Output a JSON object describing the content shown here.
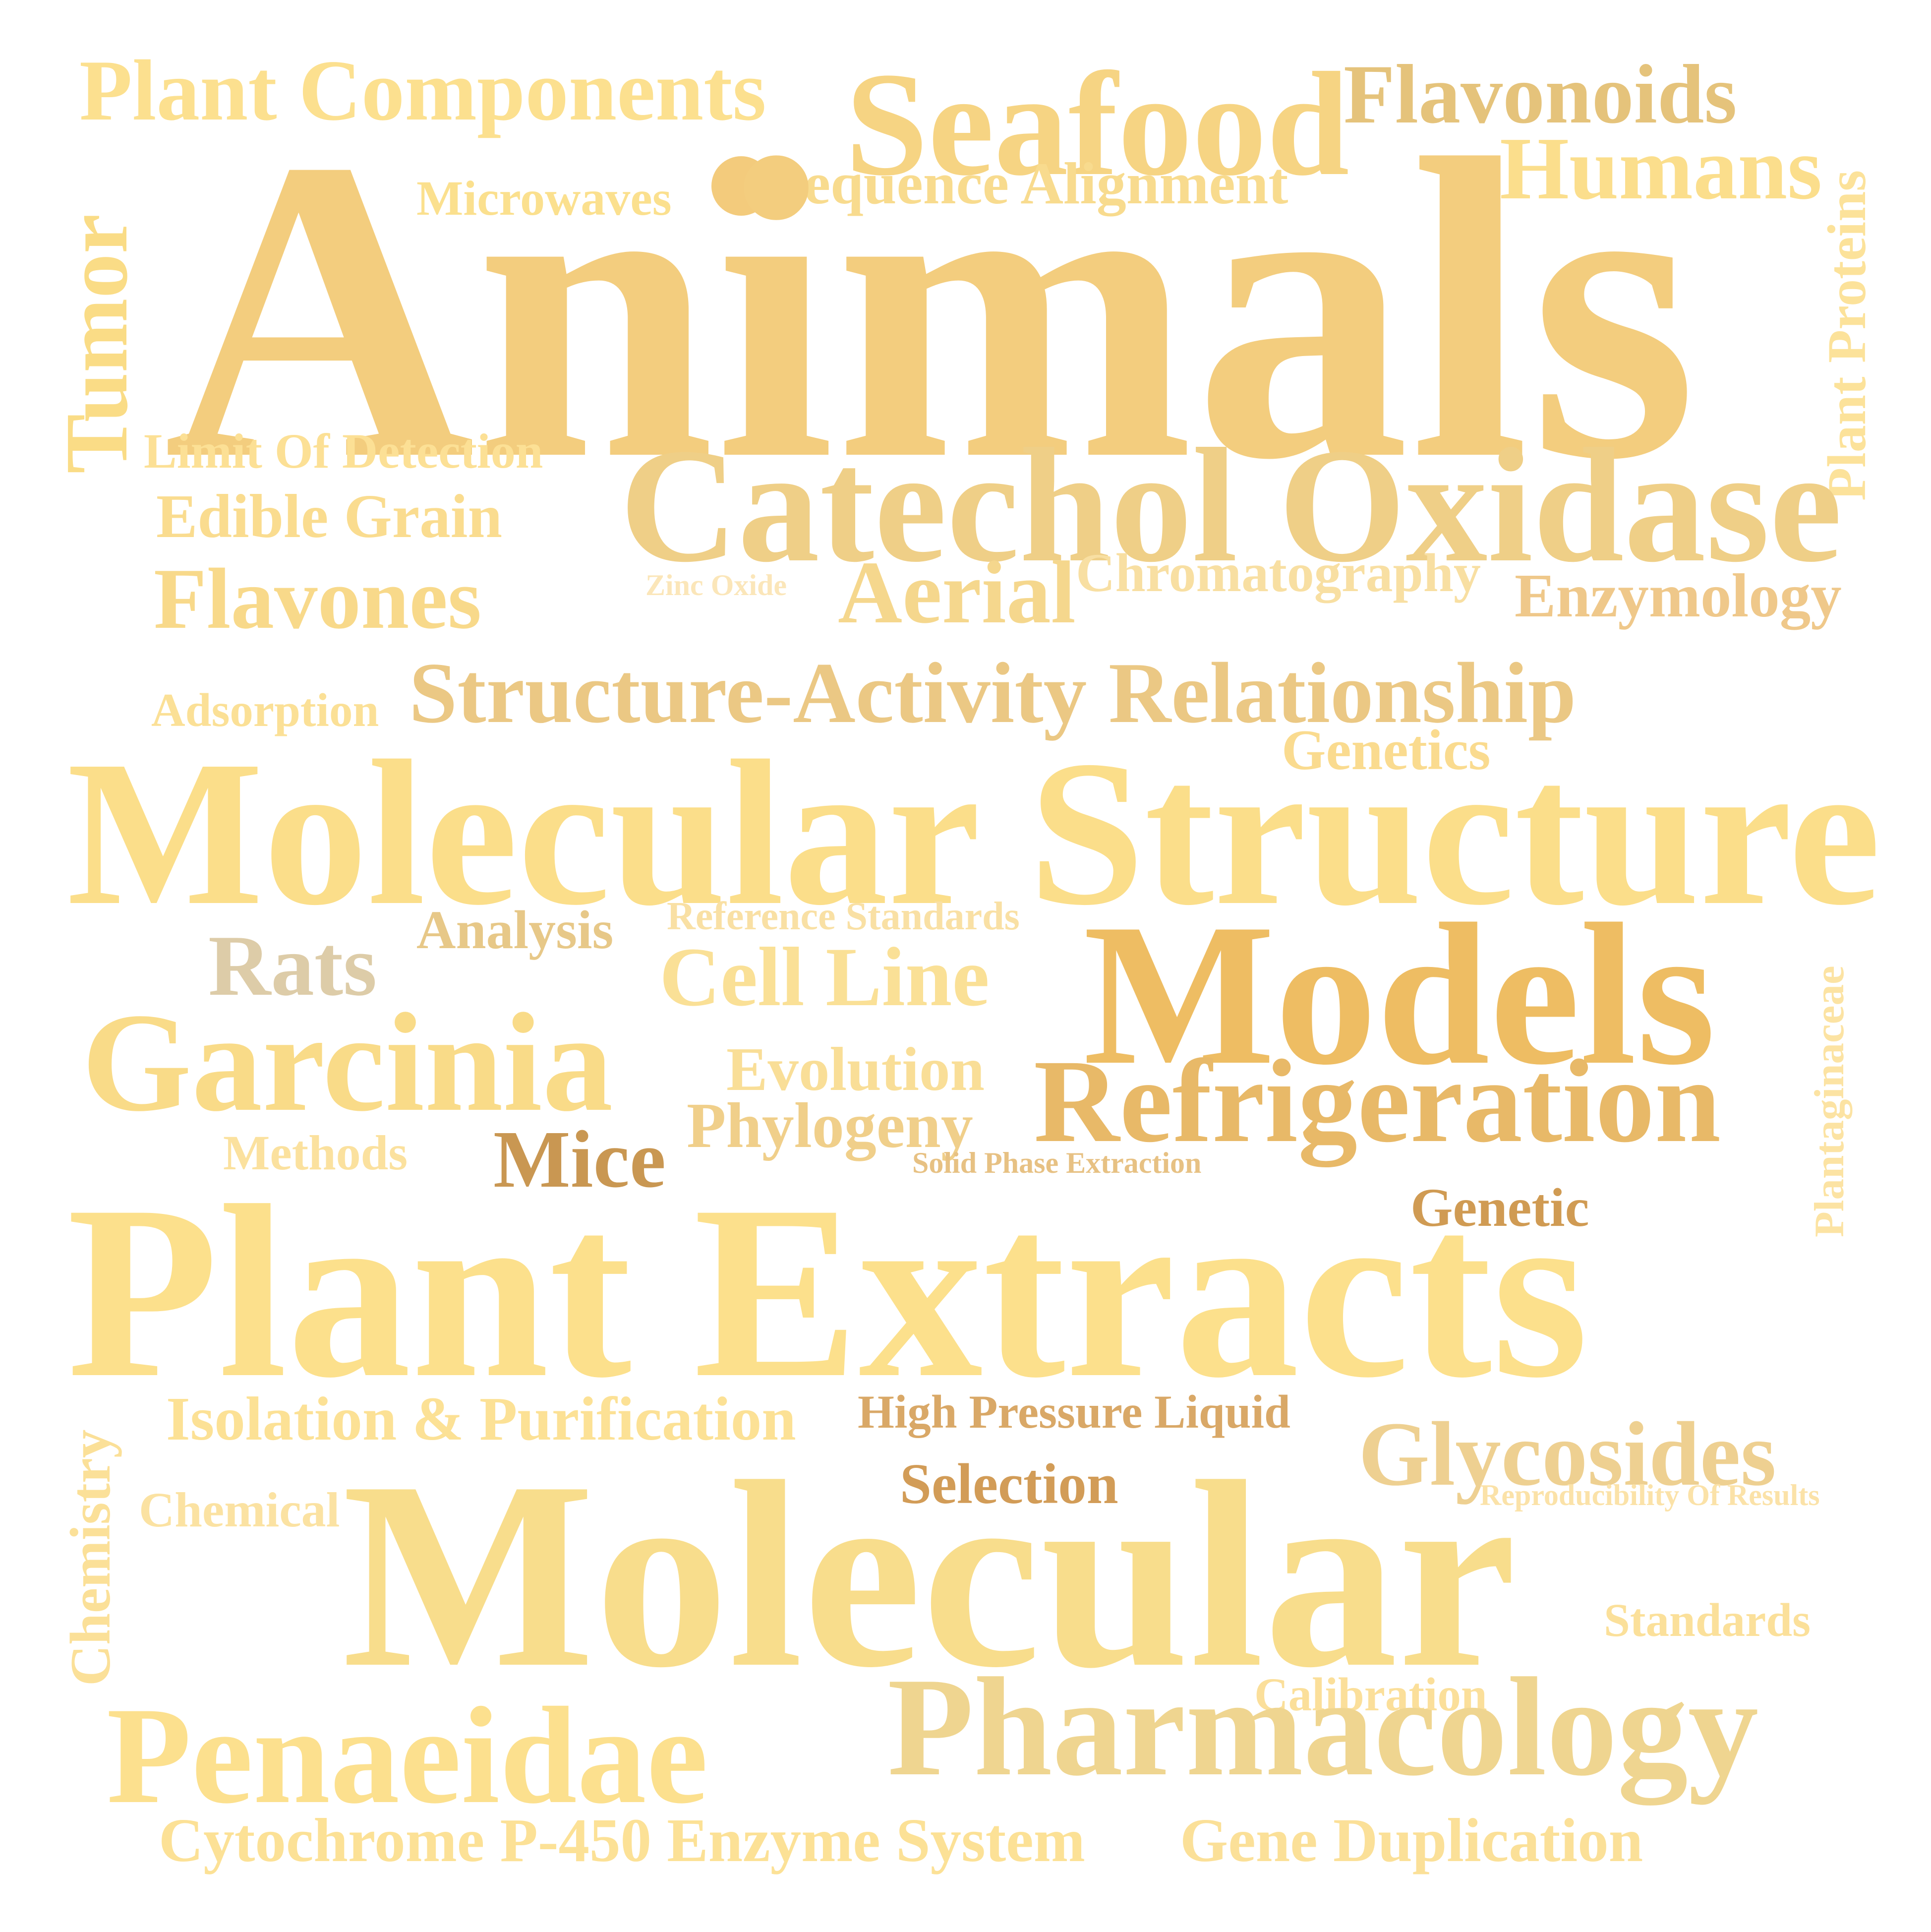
{
  "words": {
    "plant_components": {
      "text": "Plant Components",
      "color": "#FCE08F"
    },
    "seafood": {
      "text": "Seafood",
      "color": "#F6D483"
    },
    "flavonoids": {
      "text": "Flavonoids",
      "color": "#E5C37B"
    },
    "humans": {
      "text": "Humans",
      "color": "#FBDE8C"
    },
    "plant_proteins": {
      "text": "Plant Proteins",
      "color": "#FCE29A"
    },
    "microwaves": {
      "text": "Microwaves",
      "color": "#FBE08E"
    },
    "sequence_alignment": {
      "text": "Sequence Alignment",
      "color": "#F8DB8E"
    },
    "animals": {
      "text": "Animals",
      "color": "#F3CD7E"
    },
    "tumor": {
      "text": "Tumor",
      "color": "#FADC86"
    },
    "limit_of_detection": {
      "text": "Limit Of Detection",
      "color": "#FCE095"
    },
    "catechol_oxidase": {
      "text": "Catechol Oxidase",
      "color": "#EFCF87"
    },
    "edible_grain": {
      "text": "Edible Grain",
      "color": "#FADC8F"
    },
    "flavones": {
      "text": "Flavones",
      "color": "#F8D98A"
    },
    "zinc_oxide": {
      "text": "Zinc Oxide",
      "color": "#FBE6B9"
    },
    "aerial": {
      "text": "Aerial",
      "color": "#F5D78D"
    },
    "chromatography": {
      "text": "Chromatography",
      "color": "#F8DFA2"
    },
    "enzymology": {
      "text": "Enzymology",
      "color": "#EFC88A"
    },
    "adsorption": {
      "text": "Adsorption",
      "color": "#FBE096"
    },
    "structure_activity": {
      "text": "Structure-Activity Relationship",
      "color": "#EBC884"
    },
    "genetics": {
      "text": "Genetics",
      "color": "#FADB8F"
    },
    "molecular_structure": {
      "text": "Molecular Structure",
      "color": "#FBDE8A"
    },
    "analysis": {
      "text": "Analysis",
      "color": "#E7C888"
    },
    "reference_standards": {
      "text": "Reference Standards",
      "color": "#F9E0A4"
    },
    "models": {
      "text": "Models",
      "color": "#EEBD63"
    },
    "plantaginaceae": {
      "text": "Plantaginaceae",
      "color": "#FCE3A3"
    },
    "rats": {
      "text": "Rats",
      "color": "#DDCCA8"
    },
    "cell_line": {
      "text": "Cell Line",
      "color": "#FAE096"
    },
    "garcinia": {
      "text": "Garcinia",
      "color": "#F9DB88"
    },
    "evolution": {
      "text": "Evolution",
      "color": "#F9DE97"
    },
    "refrigeration": {
      "text": "Refrigeration",
      "color": "#E8B968"
    },
    "phylogeny": {
      "text": "Phylogeny",
      "color": "#F0CF8A"
    },
    "methods": {
      "text": "Methods",
      "color": "#FBE19E"
    },
    "mice": {
      "text": "Mice",
      "color": "#C99752"
    },
    "solid_phase_extraction": {
      "text": "Solid Phase Extraction",
      "color": "#E7C183"
    },
    "genetic": {
      "text": "Genetic",
      "color": "#D09B53"
    },
    "plant_extracts": {
      "text": "Plant Extracts",
      "color": "#FCE08C"
    },
    "isolation_purification": {
      "text": "Isolation & Purification",
      "color": "#FCE195"
    },
    "hplc": {
      "text": "High Pressure Liquid",
      "color": "#D9A867"
    },
    "glycosides": {
      "text": "Glycosides",
      "color": "#EED091"
    },
    "chemistry": {
      "text": "Chemistry",
      "color": "#FBE098"
    },
    "chemical": {
      "text": "Chemical",
      "color": "#FBE2A2"
    },
    "selection": {
      "text": "Selection",
      "color": "#D29C57"
    },
    "reproducibility": {
      "text": "Reproducibility Of Results",
      "color": "#FBE2A8"
    },
    "molecular": {
      "text": "Molecular",
      "color": "#F8DD8C"
    },
    "standards": {
      "text": "Standards",
      "color": "#FBE09A"
    },
    "calibration": {
      "text": "Calibration",
      "color": "#FBDF9A"
    },
    "penaeidae": {
      "text": "Penaeidae",
      "color": "#FCE08E"
    },
    "pharmacology": {
      "text": "Pharmacology",
      "color": "#EFD590"
    },
    "cytochrome": {
      "text": "Cytochrome P-450 Enzyme System",
      "color": "#FCE196"
    },
    "gene_duplication": {
      "text": "Gene Duplication",
      "color": "#FBE098"
    }
  },
  "bullet_color": "#F3CB7C"
}
